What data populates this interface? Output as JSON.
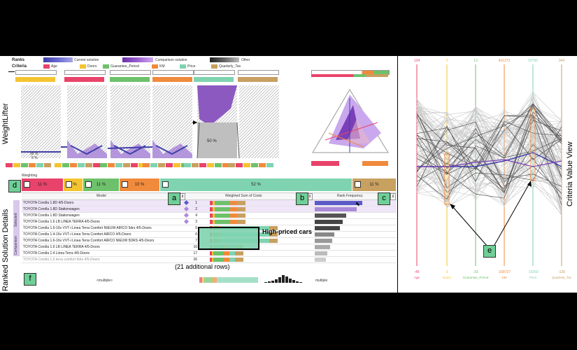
{
  "ranks": {
    "label": "Ranks",
    "current": "Current solution",
    "current_swatch": "1 ... 2 ... 3 ...",
    "comparison": "Comparison solution",
    "comparison_swatch": "1 ... 2 ... 3",
    "other": "Other",
    "other_swatch": "1 ... 2 ... 3"
  },
  "criteria": {
    "label": "Criteria",
    "items": [
      {
        "name": "Age",
        "color": "#e8436a"
      },
      {
        "name": "Doors",
        "color": "#f4c430"
      },
      {
        "name": "Guarantee_Period",
        "color": "#6dc16b"
      },
      {
        "name": "KM",
        "color": "#f08a3c"
      },
      {
        "name": "Price",
        "color": "#7fd3b0"
      },
      {
        "name": "Quarterly_Tax",
        "color": "#c8a060"
      }
    ]
  },
  "weightlifter": {
    "title": "WeightLifter",
    "pct_a": "95 %",
    "pct_b": "5 %",
    "pct_c": "50 %"
  },
  "weighting": {
    "label": "Weighting",
    "segments": [
      {
        "label": "11 %",
        "color": "#e8436a"
      },
      {
        "label": "5 %",
        "color": "#f4c430"
      },
      {
        "label": "11 %",
        "color": "#6dc16b"
      },
      {
        "label": "10 %",
        "color": "#f08a3c"
      },
      {
        "label": "52 %",
        "color": "#7fd3b0"
      },
      {
        "label": "11 %",
        "color": "#c8a060"
      }
    ]
  },
  "table": {
    "section_title": "Ranked Solution Details",
    "side_label_a": "Selected",
    "side_label_b": "Comparison",
    "col_model": "Model",
    "col_wsum": "Weighted Sum of Costs",
    "col_rank": "Rank Frequency",
    "rows": [
      {
        "model": "TOYOTA Corolla 1.8D 4/5-Doors",
        "rank": "1"
      },
      {
        "model": "TOYOTA Corolla 1.8D Stationwagen",
        "rank": "2"
      },
      {
        "model": "TOYOTA Corolla 1.8D Stationwagen",
        "rank": "4"
      },
      {
        "model": "TOYOTA Corolla 1.6 LB LINEA TERRA 4/5-Doors",
        "rank": "3"
      },
      {
        "model": "TOYOTA Corolla 1.6-16v VVT-i Linea Terra Comfort NIEUW AIRCO 5drs 4/5-Doors",
        "rank": "5"
      },
      {
        "model": "TOYOTA Corolla 1.4-16v VVT-i Linea Terra Comfort AIRCO 4/5-Doors",
        "rank": "6"
      },
      {
        "model": "TOYOTA Corolla 1.6-16v VVT-i Linea Terra Comfort AIRCO NIEUW 5DRS 4/5-Doors",
        "rank": "7"
      },
      {
        "model": "TOYOTA Corolla 1.6 LB LINEA TERRA 4/5-Doors",
        "rank": "16"
      },
      {
        "model": "TOYOTA Corolla 1.4 Linea Terra 4/5-Doors",
        "rank": "17"
      },
      {
        "model": "TOYOTA Corolla 1.6 terra comfort 5drs 4/5-Doors",
        "rank": "26"
      }
    ],
    "additional_rows": "(21 additional rows)",
    "multiple_model": "<multiple>",
    "multiple_rank": "multiple"
  },
  "annotations": {
    "high_priced": "High-priced cars",
    "tags": [
      "a",
      "b",
      "c",
      "d",
      "e",
      "f"
    ]
  },
  "criteria_value_view": {
    "title": "Criteria Value View",
    "axes": [
      {
        "name": "Age",
        "top": "134",
        "bottom": "-46",
        "color": "#e8436a"
      },
      {
        "name": "Doors",
        "top": "2",
        "bottom": "3",
        "color": "#f4c430"
      },
      {
        "name": "Guarantee_Period",
        "top": "13",
        "bottom": "-33",
        "color": "#6dc16b"
      },
      {
        "name": "KM",
        "top": "431273",
        "bottom": "-168727",
        "color": "#f08a3c"
      },
      {
        "name": "Price",
        "top": "30750",
        "bottom": "-10250",
        "color": "#7fd3b0"
      },
      {
        "name": "Quarterly_Tax",
        "top": "344",
        "bottom": "-136",
        "color": "#c8a060"
      }
    ]
  }
}
